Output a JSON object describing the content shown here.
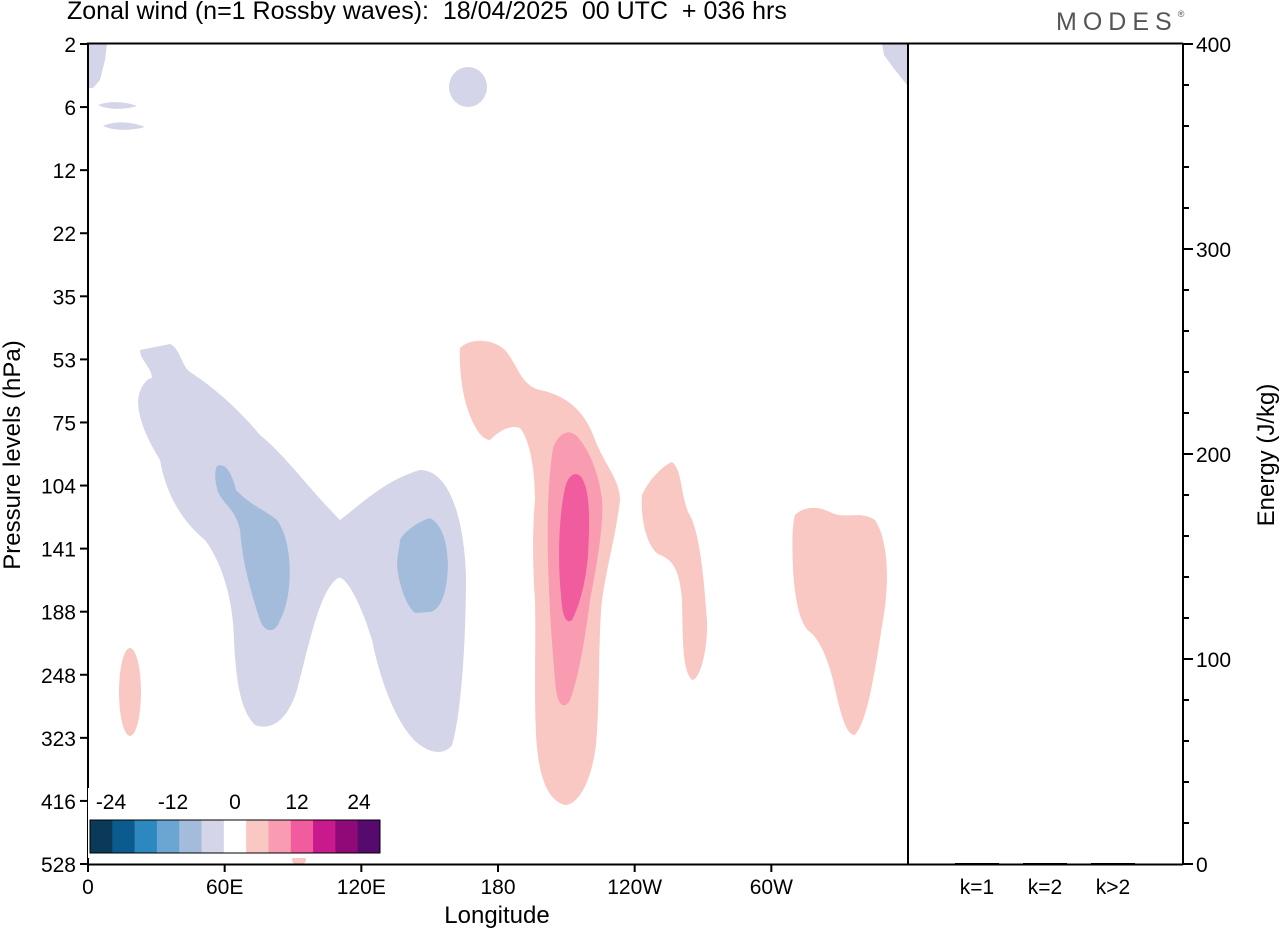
{
  "header": {
    "title": "Zonal wind (n=1 Rossby waves):  18/04/2025  00 UTC  + 036 hrs",
    "brand": "MODES",
    "brand_mark": "®"
  },
  "colors": {
    "palette": [
      "#0b3a59",
      "#0c5b8f",
      "#2d88c0",
      "#6aa6d1",
      "#a3bcdc",
      "#d4d5e8",
      "#ffffff",
      "#f9c8c3",
      "#f99bb1",
      "#f05c9e",
      "#c91a8d",
      "#8f0a78",
      "#560a6e"
    ],
    "frame": "#000000"
  },
  "chart_data": [
    {
      "type": "contour",
      "title": "Zonal wind (n=1 Rossby waves):  18/04/2025  00 UTC  + 036 hrs",
      "xlabel": "Longitude",
      "ylabel": "Pressure levels (hPa)",
      "x_ticks": [
        "0",
        "60E",
        "120E",
        "180",
        "120W",
        "60W"
      ],
      "x_tick_values": [
        0,
        60,
        120,
        180,
        240,
        300
      ],
      "xlim": [
        0,
        360
      ],
      "y_ticks": [
        "2",
        "6",
        "12",
        "22",
        "35",
        "53",
        "75",
        "104",
        "141",
        "188",
        "248",
        "323",
        "416",
        "528"
      ],
      "colorbar": {
        "labels": [
          "-24",
          "-12",
          "0",
          "12",
          "24"
        ],
        "label_values": [
          -24,
          -12,
          0,
          12,
          24
        ],
        "levels": [
          -27,
          -24,
          -21,
          -18,
          -15,
          -12,
          -9,
          -6,
          0,
          6,
          9,
          12,
          15,
          18
        ]
      },
      "features": [
        {
          "name": "upper-left negative patch",
          "lon": [
            0,
            8
          ],
          "level_hPa": [
            2,
            4
          ],
          "value": -3
        },
        {
          "name": "small negative near 6 hPa",
          "lon": [
            5,
            25
          ],
          "level_hPa": [
            5,
            8
          ],
          "value": -3
        },
        {
          "name": "negative blob near 170E",
          "lon": [
            160,
            175
          ],
          "level_hPa": [
            3,
            5
          ],
          "value": -3
        },
        {
          "name": "negative region 20E-165E",
          "lon": [
            20,
            165
          ],
          "level_hPa": [
            53,
            323
          ],
          "value": -6
        },
        {
          "name": "negative core near 70E",
          "lon": [
            55,
            90
          ],
          "level_hPa": [
            100,
            200
          ],
          "value": -9
        },
        {
          "name": "negative core near 150E",
          "lon": [
            135,
            155
          ],
          "level_hPa": [
            130,
            190
          ],
          "value": -9
        },
        {
          "name": "positive region 165E-130W",
          "lon": [
            165,
            235
          ],
          "level_hPa": [
            53,
            416
          ],
          "value": 3
        },
        {
          "name": "positive core near 155W",
          "lon": [
            195,
            225
          ],
          "level_hPa": [
            75,
            300
          ],
          "value": 9
        },
        {
          "name": "positive maximum near 155W",
          "lon": [
            200,
            220
          ],
          "level_hPa": [
            105,
            190
          ],
          "value": 12
        },
        {
          "name": "positive region near 105W",
          "lon": [
            242,
            273
          ],
          "level_hPa": [
            90,
            248
          ],
          "value": 3
        },
        {
          "name": "positive region near 40W",
          "lon": [
            310,
            350
          ],
          "level_hPa": [
            110,
            323
          ],
          "value": 3
        },
        {
          "name": "small positive near 15E",
          "lon": [
            12,
            22
          ],
          "level_hPa": [
            210,
            323
          ],
          "value": 3
        }
      ]
    },
    {
      "type": "bar",
      "categories": [
        "k=1",
        "k=2",
        "k>2"
      ],
      "values": [
        0.4,
        0.2,
        0.3
      ],
      "ylabel": "Energy (J/kg)",
      "ylim": [
        0,
        400
      ],
      "y_ticks": [
        "0",
        "100",
        "200",
        "300",
        "400"
      ],
      "y_tick_values": [
        0,
        100,
        200,
        300,
        400
      ]
    }
  ]
}
